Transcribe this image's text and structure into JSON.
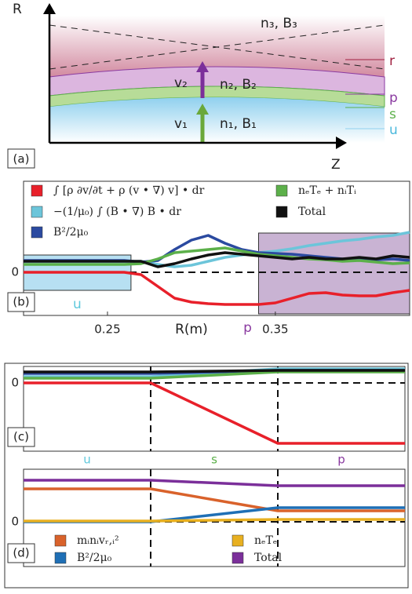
{
  "diagram": {
    "r_axis": "R",
    "z_axis": "Z",
    "upper": "n₃, B₃",
    "middle": "n₂, B₂",
    "lower": "n₁, B₁",
    "v_middle": "v₂",
    "v_lower": "v₁",
    "layer_r": "r",
    "layer_p": "p",
    "layer_s": "s",
    "layer_u": "u",
    "panel_label": "(a)"
  },
  "chart_data": [
    {
      "type": "line",
      "panel_label": "(b)",
      "xlabel": "R(m)",
      "x": [
        0.2,
        0.21,
        0.22,
        0.23,
        0.24,
        0.25,
        0.26,
        0.27,
        0.28,
        0.29,
        0.3,
        0.31,
        0.32,
        0.33,
        0.34,
        0.35,
        0.36,
        0.37,
        0.38,
        0.39,
        0.4,
        0.41,
        0.42,
        0.43
      ],
      "xlim": [
        0.2,
        0.43
      ],
      "xticks": [
        0.25,
        0.35
      ],
      "ylim": [
        -1.1,
        2.32
      ],
      "yticks": [
        0
      ],
      "regions": [
        {
          "label": "u",
          "color": "#5fc8dc",
          "fill": "#9fd6ee",
          "x": [
            0.2,
            0.264
          ],
          "y": [
            -0.46,
            0.44
          ]
        },
        {
          "label": "p",
          "color": "#8a3aa0",
          "fill": "#b79ac4",
          "x": [
            0.34,
            0.43
          ],
          "y": [
            -1.06,
            1.0
          ]
        }
      ],
      "series": [
        {
          "name": "∫ [ρ ∂v/∂t + ρ (v • ∇) v] • dr",
          "color": "#e8202a",
          "values": [
            0,
            0,
            0,
            0,
            0,
            0,
            0,
            -0.06,
            -0.36,
            -0.66,
            -0.76,
            -0.8,
            -0.82,
            -0.82,
            -0.82,
            -0.78,
            -0.66,
            -0.54,
            -0.52,
            -0.58,
            -0.6,
            -0.6,
            -0.52,
            -0.46
          ]
        },
        {
          "name": "−(1/μ₀) ∫ (B • ∇) B • dr",
          "color": "#6cc5da",
          "values": [
            0.28,
            0.28,
            0.28,
            0.28,
            0.28,
            0.28,
            0.28,
            0.28,
            0.2,
            0.14,
            0.18,
            0.28,
            0.38,
            0.44,
            0.5,
            0.54,
            0.6,
            0.68,
            0.74,
            0.8,
            0.84,
            0.9,
            0.94,
            1.02
          ]
        },
        {
          "name": "B²/2μ₀",
          "color": "#2b4aa0",
          "values": [
            0.3,
            0.3,
            0.3,
            0.3,
            0.3,
            0.3,
            0.3,
            0.26,
            0.3,
            0.58,
            0.82,
            0.94,
            0.74,
            0.58,
            0.5,
            0.48,
            0.46,
            0.42,
            0.38,
            0.34,
            0.34,
            0.32,
            0.34,
            0.3
          ]
        },
        {
          "name": "nₑTₑ + nᵢTᵢ",
          "color": "#5cb04a",
          "values": [
            0.2,
            0.2,
            0.2,
            0.2,
            0.2,
            0.2,
            0.2,
            0.22,
            0.34,
            0.5,
            0.54,
            0.58,
            0.62,
            0.54,
            0.46,
            0.42,
            0.38,
            0.34,
            0.32,
            0.28,
            0.3,
            0.26,
            0.22,
            0.24
          ]
        },
        {
          "name": "Total",
          "color": "#111111",
          "values": [
            0.28,
            0.28,
            0.28,
            0.28,
            0.28,
            0.28,
            0.28,
            0.28,
            0.14,
            0.22,
            0.34,
            0.44,
            0.5,
            0.46,
            0.42,
            0.38,
            0.34,
            0.38,
            0.34,
            0.34,
            0.38,
            0.34,
            0.42,
            0.38
          ]
        }
      ]
    },
    {
      "type": "line",
      "panel_label": "(c)",
      "x": [
        0,
        1,
        2,
        3
      ],
      "xlim": [
        0,
        3
      ],
      "boundaries": [
        1,
        2
      ],
      "ylim": [
        -1.74,
        0.42
      ],
      "yticks": [
        0
      ],
      "categories": [
        "u",
        "s",
        "p"
      ],
      "category_colors": [
        "#5fc8dc",
        "#5cb04a",
        "#8a3aa0"
      ],
      "series": [
        {
          "color": "#e8202a",
          "values": [
            0,
            0,
            -1.54,
            -1.54
          ]
        },
        {
          "color": "#6cc5da",
          "values": [
            0.16,
            0.16,
            0.36,
            0.36
          ]
        },
        {
          "color": "#2b4aa0",
          "values": [
            0.24,
            0.24,
            0.32,
            0.32
          ]
        },
        {
          "color": "#5cb04a",
          "values": [
            0.12,
            0.12,
            0.28,
            0.28
          ]
        },
        {
          "color": "#111111",
          "values": [
            0.28,
            0.28,
            0.32,
            0.32
          ]
        }
      ]
    },
    {
      "type": "line",
      "panel_label": "(d)",
      "x": [
        0,
        1,
        2,
        3
      ],
      "xlim": [
        0,
        3
      ],
      "boundaries": [
        1,
        2
      ],
      "ylim": [
        -1.14,
        1.34
      ],
      "yticks": [
        0
      ],
      "series": [
        {
          "name": "mᵢnᵢvᵣ,ᵢ²",
          "color": "#d9622b",
          "values": [
            0.84,
            0.84,
            0.28,
            0.28
          ]
        },
        {
          "name": "B²/2μ₀",
          "color": "#1f6fb5",
          "values": [
            0,
            0,
            0.36,
            0.36
          ]
        },
        {
          "name": "nₑTₑ",
          "color": "#e8b020",
          "values": [
            0.02,
            0.02,
            0.06,
            0.06
          ]
        },
        {
          "name": "Total",
          "color": "#7b2f9a",
          "values": [
            1.06,
            1.06,
            0.92,
            0.92
          ]
        }
      ]
    }
  ]
}
